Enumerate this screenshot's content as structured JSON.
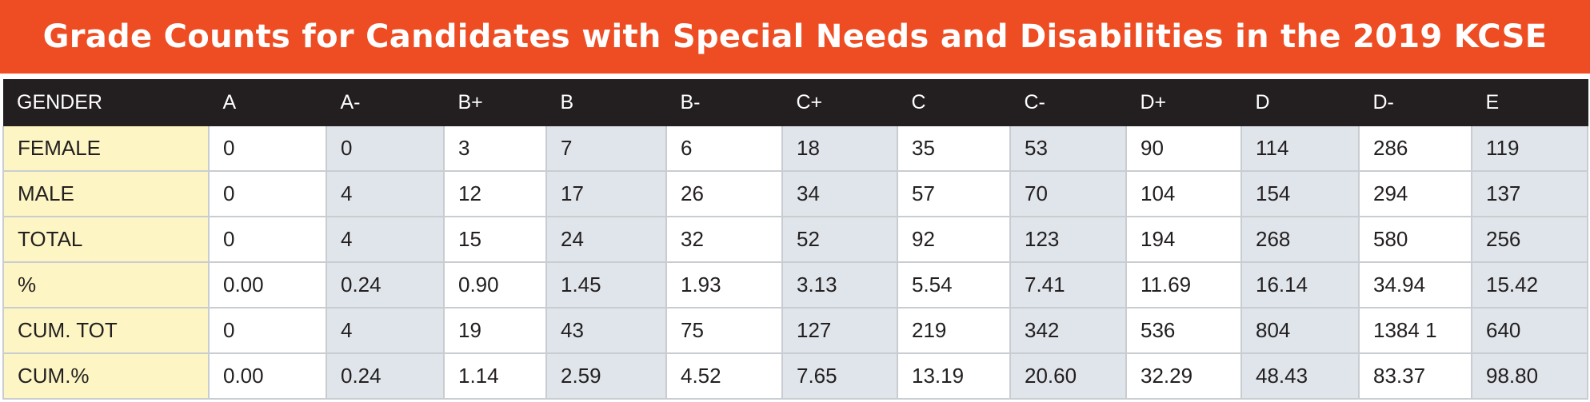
{
  "chart_data": {
    "type": "table",
    "title": "Grade Counts for Candidates with Special Needs and Disabilities in the 2019 KCSE",
    "header_label": "GENDER",
    "columns": [
      "A",
      "A-",
      "B+",
      "B",
      "B-",
      "C+",
      "C",
      "C-",
      "D+",
      "D",
      "D-",
      "E"
    ],
    "rows": [
      {
        "label": "FEMALE",
        "values": [
          "0",
          "0",
          "3",
          "7",
          "6",
          "18",
          "35",
          "53",
          "90",
          "114",
          "286",
          "119"
        ]
      },
      {
        "label": "MALE",
        "values": [
          "0",
          "4",
          "12",
          "17",
          "26",
          "34",
          "57",
          "70",
          "104",
          "154",
          "294",
          "137"
        ]
      },
      {
        "label": "TOTAL",
        "values": [
          "0",
          "4",
          "15",
          "24",
          "32",
          "52",
          "92",
          "123",
          "194",
          "268",
          "580",
          "256"
        ]
      },
      {
        "label": "%",
        "values": [
          "0.00",
          "0.24",
          "0.90",
          "1.45",
          "1.93",
          "3.13",
          "5.54",
          "7.41",
          "11.69",
          "16.14",
          "34.94",
          "15.42"
        ]
      },
      {
        "label": "CUM. TOT",
        "values": [
          "0",
          "4",
          "19",
          "43",
          "75",
          "127",
          "219",
          "342",
          "536",
          "804",
          "1384 1",
          "640"
        ]
      },
      {
        "label": "CUM.%",
        "values": [
          "0.00",
          "0.24",
          "1.14",
          "2.59",
          "4.52",
          "7.65",
          "13.19",
          "20.60",
          "32.29",
          "48.43",
          "83.37",
          "98.80"
        ]
      }
    ]
  },
  "colors": {
    "title_bar": "#ee4d23",
    "header_row": "#231f20",
    "row_label_cells": "#fdf6c4",
    "shaded_cells": "#dfe5ea",
    "white_cells": "#ffffff"
  }
}
